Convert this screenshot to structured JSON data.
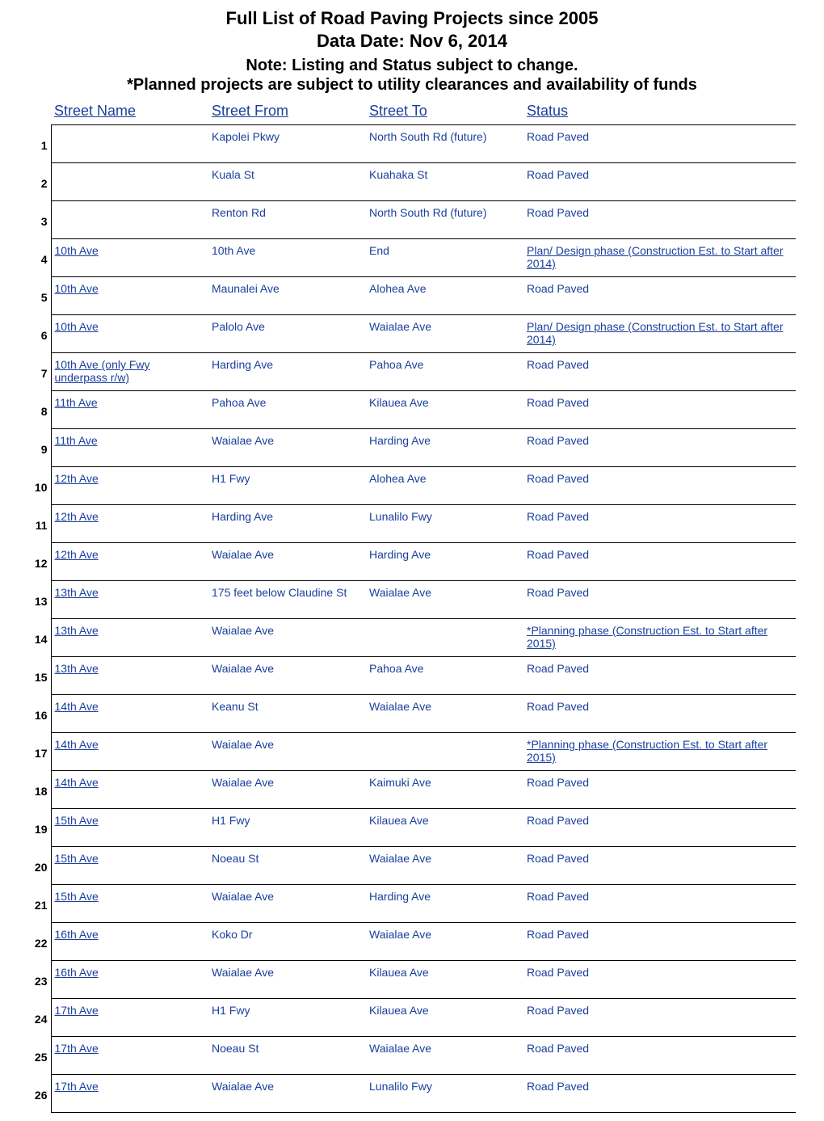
{
  "header": {
    "line1": "Full List of Road Paving Projects since 2005",
    "line2": "Data Date:  Nov 6, 2014",
    "line3": "Note: Listing and Status subject to change.",
    "line4": "*Planned projects are subject to utility clearances and availability of funds"
  },
  "columns": {
    "street_name": "Street Name",
    "street_from": "Street From",
    "street_to": "Street To",
    "status": "Status"
  },
  "colors": {
    "link": "#1a3f9c",
    "text": "#000000",
    "background": "#ffffff",
    "border": "#000000"
  },
  "rows": [
    {
      "n": "1",
      "name": "",
      "from": "Kapolei Pkwy",
      "to": "North South Rd (future)",
      "status": "Road Paved"
    },
    {
      "n": "2",
      "name": "",
      "from": "Kuala St",
      "to": "Kuahaka St",
      "status": "Road Paved"
    },
    {
      "n": "3",
      "name": "",
      "from": "Renton Rd",
      "to": "North South Rd (future)",
      "status": "Road Paved"
    },
    {
      "n": "4",
      "name": "10th Ave",
      "from": "10th Ave",
      "to": "End",
      "status": "Plan/ Design phase (Construction Est. to Start after 2014)",
      "status_underlined": true
    },
    {
      "n": "5",
      "name": "10th Ave",
      "from": "Maunalei Ave",
      "to": "Alohea Ave",
      "status": "Road Paved"
    },
    {
      "n": "6",
      "name": "10th Ave",
      "from": "Palolo Ave",
      "to": "Waialae Ave",
      "status": "Plan/ Design phase (Construction Est. to Start after 2014)",
      "status_underlined": true
    },
    {
      "n": "7",
      "name": "10th Ave (only Fwy underpass r/w)",
      "from": "Harding Ave",
      "to": "Pahoa Ave",
      "status": "Road Paved"
    },
    {
      "n": "8",
      "name": "11th Ave",
      "from": "Pahoa Ave",
      "to": "Kilauea Ave",
      "status": "Road Paved"
    },
    {
      "n": "9",
      "name": "11th Ave",
      "from": "Waialae Ave",
      "to": "Harding Ave",
      "status": "Road Paved"
    },
    {
      "n": "10",
      "name": "12th Ave",
      "from": "H1 Fwy",
      "to": "Alohea Ave",
      "status": "Road Paved"
    },
    {
      "n": "11",
      "name": "12th Ave",
      "from": "Harding Ave",
      "to": "Lunalilo Fwy",
      "status": "Road Paved"
    },
    {
      "n": "12",
      "name": "12th Ave",
      "from": "Waialae Ave",
      "to": "Harding Ave",
      "status": "Road Paved"
    },
    {
      "n": "13",
      "name": "13th Ave",
      "from": "175 feet below Claudine St",
      "to": "Waialae Ave",
      "status": "Road Paved"
    },
    {
      "n": "14",
      "name": "13th Ave",
      "from": "Waialae Ave",
      "to": "",
      "status": "*Planning phase (Construction Est. to Start after 2015)",
      "status_underlined": true
    },
    {
      "n": "15",
      "name": "13th Ave",
      "from": "Waialae Ave",
      "to": "Pahoa Ave",
      "status": "Road Paved"
    },
    {
      "n": "16",
      "name": "14th Ave",
      "from": "Keanu St",
      "to": "Waialae Ave",
      "status": "Road Paved"
    },
    {
      "n": "17",
      "name": "14th Ave",
      "from": "Waialae Ave",
      "to": "",
      "status": "*Planning phase (Construction Est. to Start after 2015)",
      "status_underlined": true
    },
    {
      "n": "18",
      "name": "14th Ave",
      "from": "Waialae Ave",
      "to": "Kaimuki Ave",
      "status": "Road Paved"
    },
    {
      "n": "19",
      "name": "15th Ave",
      "from": "H1 Fwy",
      "to": "Kilauea Ave",
      "status": "Road Paved"
    },
    {
      "n": "20",
      "name": "15th Ave",
      "from": "Noeau St",
      "to": "Waialae Ave",
      "status": "Road Paved"
    },
    {
      "n": "21",
      "name": "15th Ave",
      "from": "Waialae Ave",
      "to": "Harding Ave",
      "status": "Road Paved"
    },
    {
      "n": "22",
      "name": "16th Ave",
      "from": "Koko Dr",
      "to": "Waialae Ave",
      "status": "Road Paved"
    },
    {
      "n": "23",
      "name": "16th Ave",
      "from": "Waialae Ave",
      "to": "Kilauea Ave",
      "status": "Road Paved"
    },
    {
      "n": "24",
      "name": "17th Ave",
      "from": "H1 Fwy",
      "to": "Kilauea Ave",
      "status": "Road Paved"
    },
    {
      "n": "25",
      "name": "17th Ave",
      "from": "Noeau St",
      "to": "Waialae Ave",
      "status": "Road Paved"
    },
    {
      "n": "26",
      "name": "17th Ave",
      "from": "Waialae Ave",
      "to": "Lunalilo Fwy",
      "status": "Road Paved"
    }
  ]
}
